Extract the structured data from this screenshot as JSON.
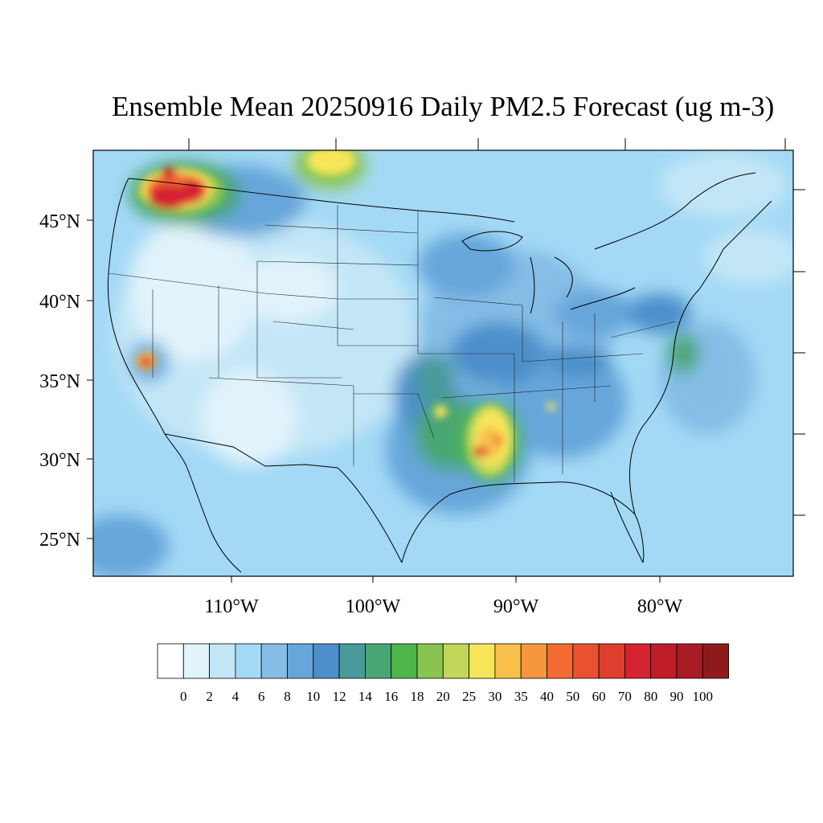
{
  "title": {
    "prefix": "Ensemble Mean 20250916 Daily PM",
    "subscript": "2.5",
    "middle": " Forecast (ug m",
    "superscript": "-3",
    "suffix": ")"
  },
  "map": {
    "lat_labels": [
      "45°N",
      "40°N",
      "35°N",
      "30°N",
      "25°N"
    ],
    "lon_labels": [
      "110°W",
      "100°W",
      "90°W",
      "80°W"
    ]
  },
  "colorbar": {
    "labels": [
      "0",
      "2",
      "4",
      "6",
      "8",
      "10",
      "12",
      "14",
      "16",
      "18",
      "20",
      "25",
      "30",
      "35",
      "40",
      "50",
      "60",
      "70",
      "80",
      "90",
      "100"
    ],
    "colors": [
      "#ffffff",
      "#e1f3fb",
      "#c3e6f7",
      "#a3d9f5",
      "#84bde6",
      "#66a6da",
      "#4d8fcb",
      "#4a9a9a",
      "#4aa673",
      "#4db54a",
      "#88c44f",
      "#c3d65a",
      "#f7e65a",
      "#f8c04b",
      "#f6963f",
      "#f26b33",
      "#e95230",
      "#df3d2d",
      "#d42230",
      "#bf1d27",
      "#a81c24",
      "#8e1a1c"
    ]
  }
}
